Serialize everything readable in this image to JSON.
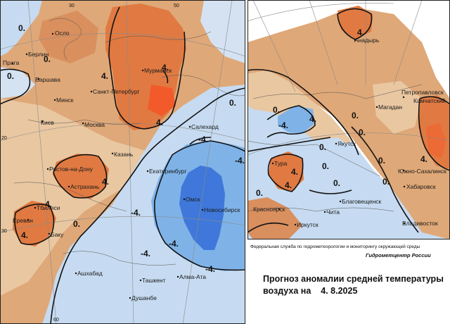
{
  "colors": {
    "cold_strong": "#3a6fd8",
    "cold": "#5fa2e6",
    "cool": "#b9d6f2",
    "cool_light": "#d6e4f4",
    "warm_light": "#e8c9a4",
    "warm": "#dca072",
    "hot": "#e07a40",
    "hot_strong": "#f0552a",
    "contour": "#111111",
    "frame": "#222222"
  },
  "title_line1": "Прогноз аномалии средней температуры",
  "title_line2_prefix": "воздуха на",
  "date": "4. 8.2025",
  "credit_org": "Федеральная служба по гидрометеорологии и мониторингу окружающей среды",
  "credit_center": "Гидрометцентр России",
  "graticule_labels": [
    "30",
    "50",
    "60",
    "20",
    "30"
  ],
  "left_cities": [
    "Осло",
    "Берлин",
    "Прага",
    "Варшава",
    "Минск",
    "Киев",
    "Москва",
    "Санкт-Петербург",
    "Мурманск",
    "Казань",
    "Ростов-на-Дону",
    "Астрахань",
    "Тбилиси",
    "Ереван",
    "Баку",
    "Ашхабад",
    "Ташкент",
    "Душанбе",
    "Алма-Ата",
    "Салехард",
    "Екатеринбург",
    "Омск",
    "Новосибирск"
  ],
  "right_cities": [
    "Анадырь",
    "Петропавловск",
    "Камчатский",
    "Магадан",
    "Якутск",
    "Тура",
    "Южно-Сахалинск",
    "Хабаровск",
    "Благовещенск",
    "Красноярск",
    "Иркутск",
    "Чита",
    "Владивосток"
  ],
  "left_contour_labels": [
    "0.",
    "0.",
    "4.",
    "4.",
    "4.",
    "4.",
    "4.",
    "0.",
    "-4.",
    "-4.",
    "-4.",
    "-4.",
    "-4.",
    "-4.",
    "0.",
    "4.",
    "0."
  ],
  "right_contour_labels": [
    "4.",
    "0.",
    "-4.",
    "4.",
    "0.",
    "0.",
    "0.",
    "0.",
    "4.",
    "4.",
    "0.",
    "0.",
    "0.",
    "4.",
    "0."
  ]
}
